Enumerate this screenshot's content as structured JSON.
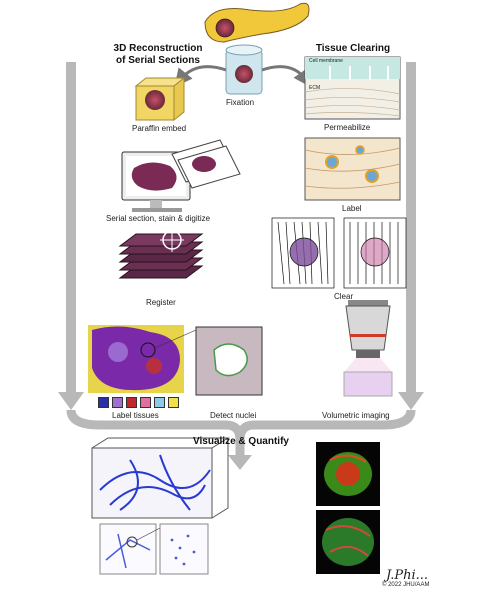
{
  "headers": {
    "reconstruction_line1": "3D Reconstruction",
    "reconstruction_line2": "of Serial Sections",
    "clearing": "Tissue Clearing",
    "quantify": "Visualize & Quantify"
  },
  "steps": {
    "fixation": "Fixation",
    "paraffin": "Paraffin embed",
    "permeabilize": "Permeabilize",
    "serial": "Serial section, stain & digitize",
    "label": "Label",
    "register": "Register",
    "clear": "Clear",
    "label_tissues": "Label tissues",
    "detect_nuclei": "Detect nuclei",
    "volumetric": "Volumetric imaging"
  },
  "inset_labels": {
    "cell_membrane": "Cell membrane",
    "ecm": "ECM"
  },
  "legend_colors": [
    "#2b2fa8",
    "#a070d0",
    "#c0282c",
    "#e070a0",
    "#8ccbe8",
    "#f2e04a"
  ],
  "credit": "© 2022 JHU/AAM",
  "signature": "J.Phi..."
}
